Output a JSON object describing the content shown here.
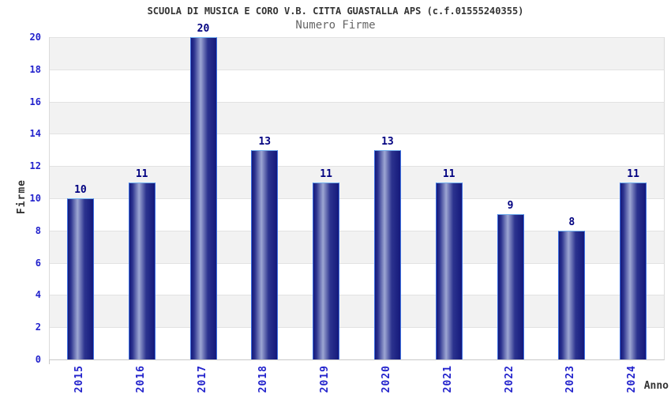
{
  "header": {
    "title": "SCUOLA DI MUSICA E CORO V.B. CITTA GUASTALLA APS (c.f.01555240355)",
    "subtitle": "Numero Firme"
  },
  "axes": {
    "y_label": "Firme",
    "x_label": "Anno"
  },
  "chart_data": {
    "type": "bar",
    "title": "SCUOLA DI MUSICA E CORO V.B. CITTA GUASTALLA APS (c.f.01555240355)",
    "subtitle": "Numero Firme",
    "categories": [
      "2015",
      "2016",
      "2017",
      "2018",
      "2019",
      "2020",
      "2021",
      "2022",
      "2023",
      "2024"
    ],
    "values": [
      10,
      11,
      20,
      13,
      11,
      13,
      11,
      9,
      8,
      11
    ],
    "xlabel": "Anno",
    "ylabel": "Firme",
    "ylim": [
      0,
      20
    ],
    "ytick_step": 2,
    "yticks": [
      0,
      2,
      4,
      6,
      8,
      10,
      12,
      14,
      16,
      18,
      20
    ],
    "grid": "alternating-horizontal-bands",
    "legend_position": "none",
    "x_tick_rotation_deg": 90,
    "bar_value_labels": true
  },
  "colors": {
    "tick_blue": "#2222cc",
    "value_label_navy": "#000080",
    "title_gray": "#333333",
    "subtitle_gray": "#666666",
    "band_gray": "#f2f2f2",
    "band_white": "#ffffff",
    "grid_line": "#e2e2e2",
    "axis_line": "#c8c8c8",
    "bar_dark": "#14197b",
    "bar_mid": "#2c338f",
    "bar_light": "#9da6d3",
    "bar_border_side": "#3d6fe0",
    "bar_border_top": "#74b2f0"
  }
}
